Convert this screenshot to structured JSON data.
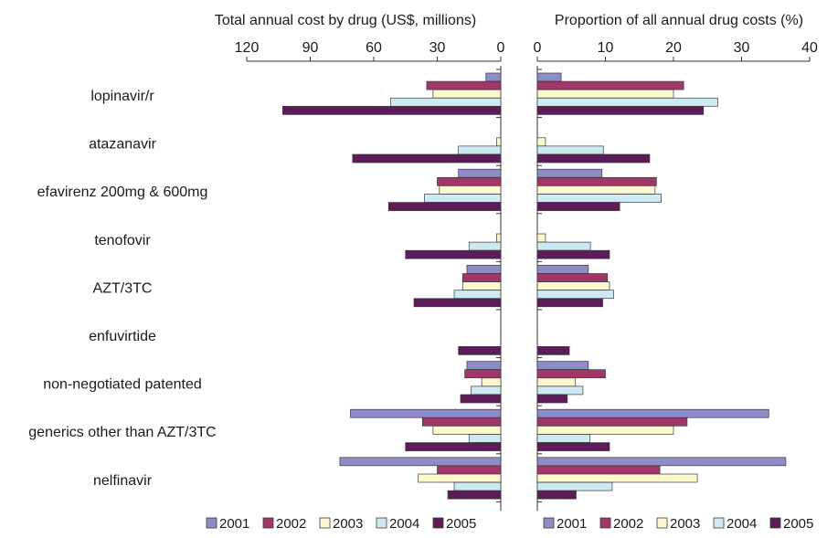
{
  "chart_data": {
    "type": "bar",
    "orientation": "horizontal",
    "categories": [
      "lopinavir/r",
      "atazanavir",
      "efavirenz 200mg & 600mg",
      "tenofovir",
      "AZT/3TC",
      "enfuvirtide",
      "non-negotiated patented",
      "generics other than AZT/3TC",
      "nelfinavir"
    ],
    "years": [
      "2001",
      "2002",
      "2003",
      "2004",
      "2005"
    ],
    "colors": [
      "#8e8cc6",
      "#a23669",
      "#fdf8cd",
      "#cdeaf3",
      "#5b1c59"
    ],
    "left_panel": {
      "title": "Total annual cost by drug (US$, millions)",
      "xlim": [
        0,
        120
      ],
      "ticks": [
        "120",
        "90",
        "60",
        "30",
        "0"
      ],
      "series": [
        {
          "name": "2001",
          "values": [
            7,
            0,
            20,
            0,
            16,
            0,
            16,
            71,
            76
          ]
        },
        {
          "name": "2002",
          "values": [
            35,
            0,
            30,
            0,
            18,
            0,
            17,
            37,
            30
          ]
        },
        {
          "name": "2003",
          "values": [
            32,
            2,
            29,
            2,
            18,
            0,
            9,
            32,
            39
          ]
        },
        {
          "name": "2004",
          "values": [
            52,
            20,
            36,
            15,
            22,
            0,
            14,
            15,
            22
          ]
        },
        {
          "name": "2005",
          "values": [
            103,
            70,
            53,
            45,
            41,
            20,
            19,
            45,
            25
          ]
        }
      ],
      "legend": [
        "2001",
        "2002",
        "2003",
        "2004",
        "2005"
      ]
    },
    "right_panel": {
      "title": "Proportion of all annual drug costs (%)",
      "xlim": [
        0,
        40
      ],
      "ticks": [
        "0",
        "10",
        "20",
        "30",
        "40"
      ],
      "series": [
        {
          "name": "2001",
          "values": [
            3.5,
            0,
            9.5,
            0,
            7.5,
            0,
            7.5,
            34,
            36.5
          ]
        },
        {
          "name": "2002",
          "values": [
            21.5,
            0,
            17.5,
            0,
            10.3,
            0,
            10,
            22,
            18
          ]
        },
        {
          "name": "2003",
          "values": [
            20,
            1.2,
            17.3,
            1.2,
            10.6,
            0,
            5.6,
            20,
            23.5
          ]
        },
        {
          "name": "2004",
          "values": [
            26.5,
            9.7,
            18.2,
            7.8,
            11.2,
            0,
            6.7,
            7.7,
            11
          ]
        },
        {
          "name": "2005",
          "values": [
            24.4,
            16.5,
            12.1,
            10.6,
            9.6,
            4.7,
            4.4,
            10.6,
            5.7
          ]
        }
      ],
      "legend": [
        "2001",
        "2002",
        "2003",
        "2004",
        "2005"
      ]
    }
  }
}
